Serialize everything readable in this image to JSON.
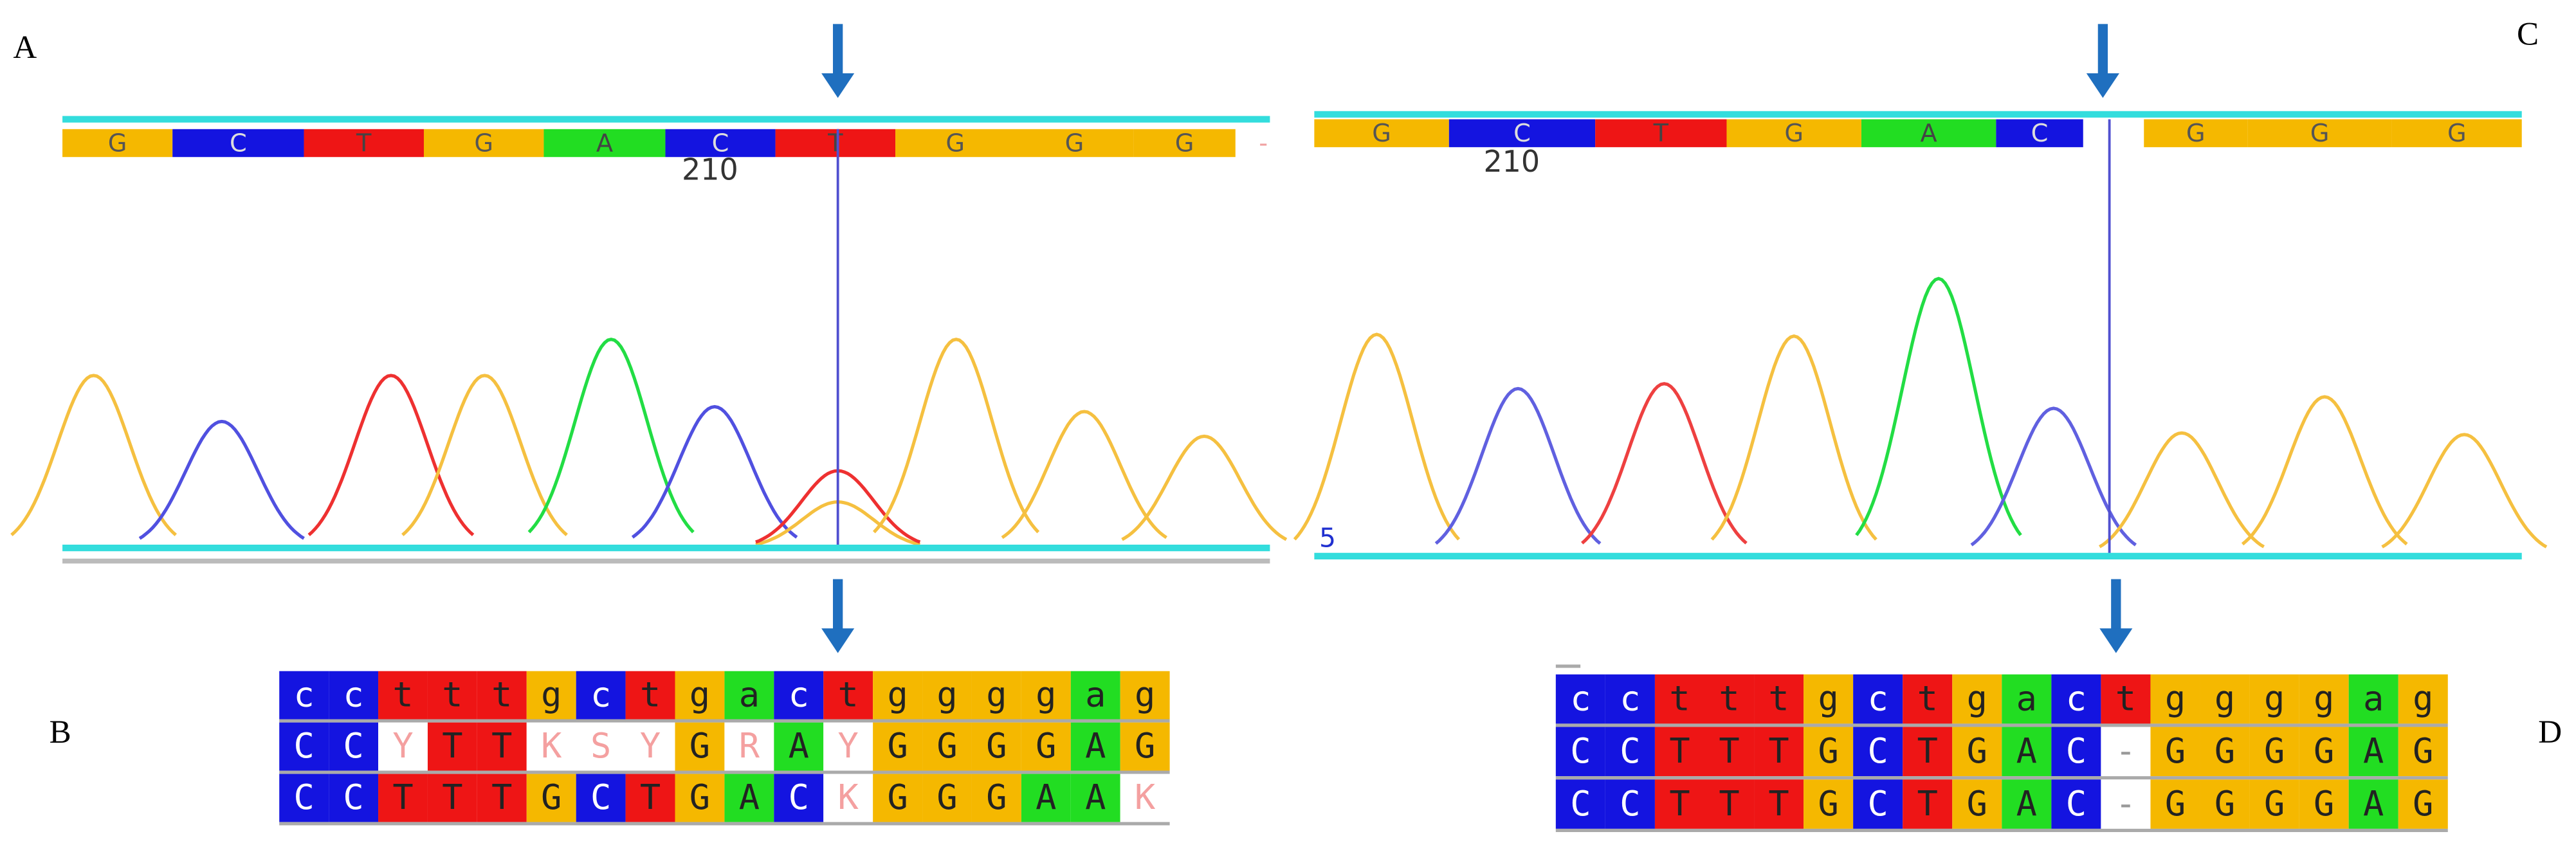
{
  "panels": [
    {
      "label": "A",
      "bases": [
        "G",
        "C",
        "T",
        "G",
        "A",
        "C",
        "T",
        "G",
        "G",
        "G",
        "-"
      ],
      "position": "210"
    },
    {
      "label": "C",
      "bases": [
        "G",
        "C",
        "T",
        "G",
        "A",
        "C",
        "G",
        "G",
        "G"
      ],
      "position": "210",
      "axis_label": "5"
    }
  ],
  "alignments": [
    {
      "label": "B",
      "rows": [
        [
          "c",
          "c",
          "t",
          "t",
          "t",
          "g",
          "c",
          "t",
          "g",
          "a",
          "c",
          "t",
          "g",
          "g",
          "g",
          "g",
          "a",
          "g"
        ],
        [
          "C",
          "C",
          "Y",
          "T",
          "T",
          "K",
          "S",
          "Y",
          "G",
          "R",
          "A",
          "Y",
          "G",
          "G",
          "G",
          "G",
          "A",
          "G"
        ],
        [
          "C",
          "C",
          "T",
          "T",
          "T",
          "G",
          "C",
          "T",
          "G",
          "A",
          "C",
          "K",
          "G",
          "G",
          "G",
          "A",
          "A",
          "K"
        ]
      ]
    },
    {
      "label": "D",
      "rows": [
        [
          "c",
          "c",
          "t",
          "t",
          "t",
          "g",
          "c",
          "t",
          "g",
          "a",
          "c",
          "t",
          "g",
          "g",
          "g",
          "g",
          "a",
          "g"
        ],
        [
          "C",
          "C",
          "T",
          "T",
          "T",
          "G",
          "C",
          "T",
          "G",
          "A",
          "C",
          "-",
          "G",
          "G",
          "G",
          "G",
          "A",
          "G"
        ],
        [
          "C",
          "C",
          "T",
          "T",
          "T",
          "G",
          "C",
          "T",
          "G",
          "A",
          "C",
          "-",
          "G",
          "G",
          "G",
          "G",
          "A",
          "G"
        ]
      ]
    }
  ]
}
